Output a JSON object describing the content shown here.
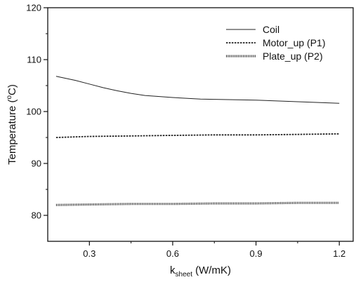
{
  "chart_data": {
    "type": "line",
    "xlabel": {
      "main": "k",
      "sub": "sheet",
      "unit": " (W/mK)"
    },
    "ylabel": {
      "before": "Temperature (",
      "sup": "o",
      "after": "C)"
    },
    "xlim": [
      0.15,
      1.25
    ],
    "ylim": [
      75,
      120
    ],
    "x_ticks": [
      0.3,
      0.6,
      0.9,
      1.2
    ],
    "x_tick_labels": [
      "0.3",
      "0.6",
      "0.9",
      "1.2"
    ],
    "y_ticks": [
      80,
      90,
      100,
      110,
      120
    ],
    "y_tick_labels": [
      "80",
      "90",
      "100",
      "110",
      "120"
    ],
    "legend_position": "top-right",
    "series": [
      {
        "name": "Coil",
        "style": "solid",
        "color": "#222222",
        "x": [
          0.18,
          0.25,
          0.3,
          0.35,
          0.4,
          0.45,
          0.5,
          0.6,
          0.7,
          0.8,
          0.9,
          1.0,
          1.1,
          1.2
        ],
        "y": [
          106.8,
          106.0,
          105.3,
          104.6,
          104.0,
          103.5,
          103.1,
          102.7,
          102.4,
          102.3,
          102.2,
          102.0,
          101.8,
          101.6
        ]
      },
      {
        "name": "Motor_up (P1)",
        "style": "dashed",
        "color": "#222222",
        "x": [
          0.18,
          0.3,
          0.45,
          0.6,
          0.75,
          0.9,
          1.05,
          1.2
        ],
        "y": [
          95.0,
          95.2,
          95.3,
          95.4,
          95.5,
          95.5,
          95.6,
          95.7
        ]
      },
      {
        "name": "Plate_up (P2)",
        "style": "dotted",
        "color": "#444444",
        "x": [
          0.18,
          0.3,
          0.45,
          0.6,
          0.75,
          0.9,
          1.05,
          1.2
        ],
        "y": [
          82.0,
          82.1,
          82.2,
          82.2,
          82.3,
          82.3,
          82.4,
          82.4
        ]
      }
    ]
  }
}
